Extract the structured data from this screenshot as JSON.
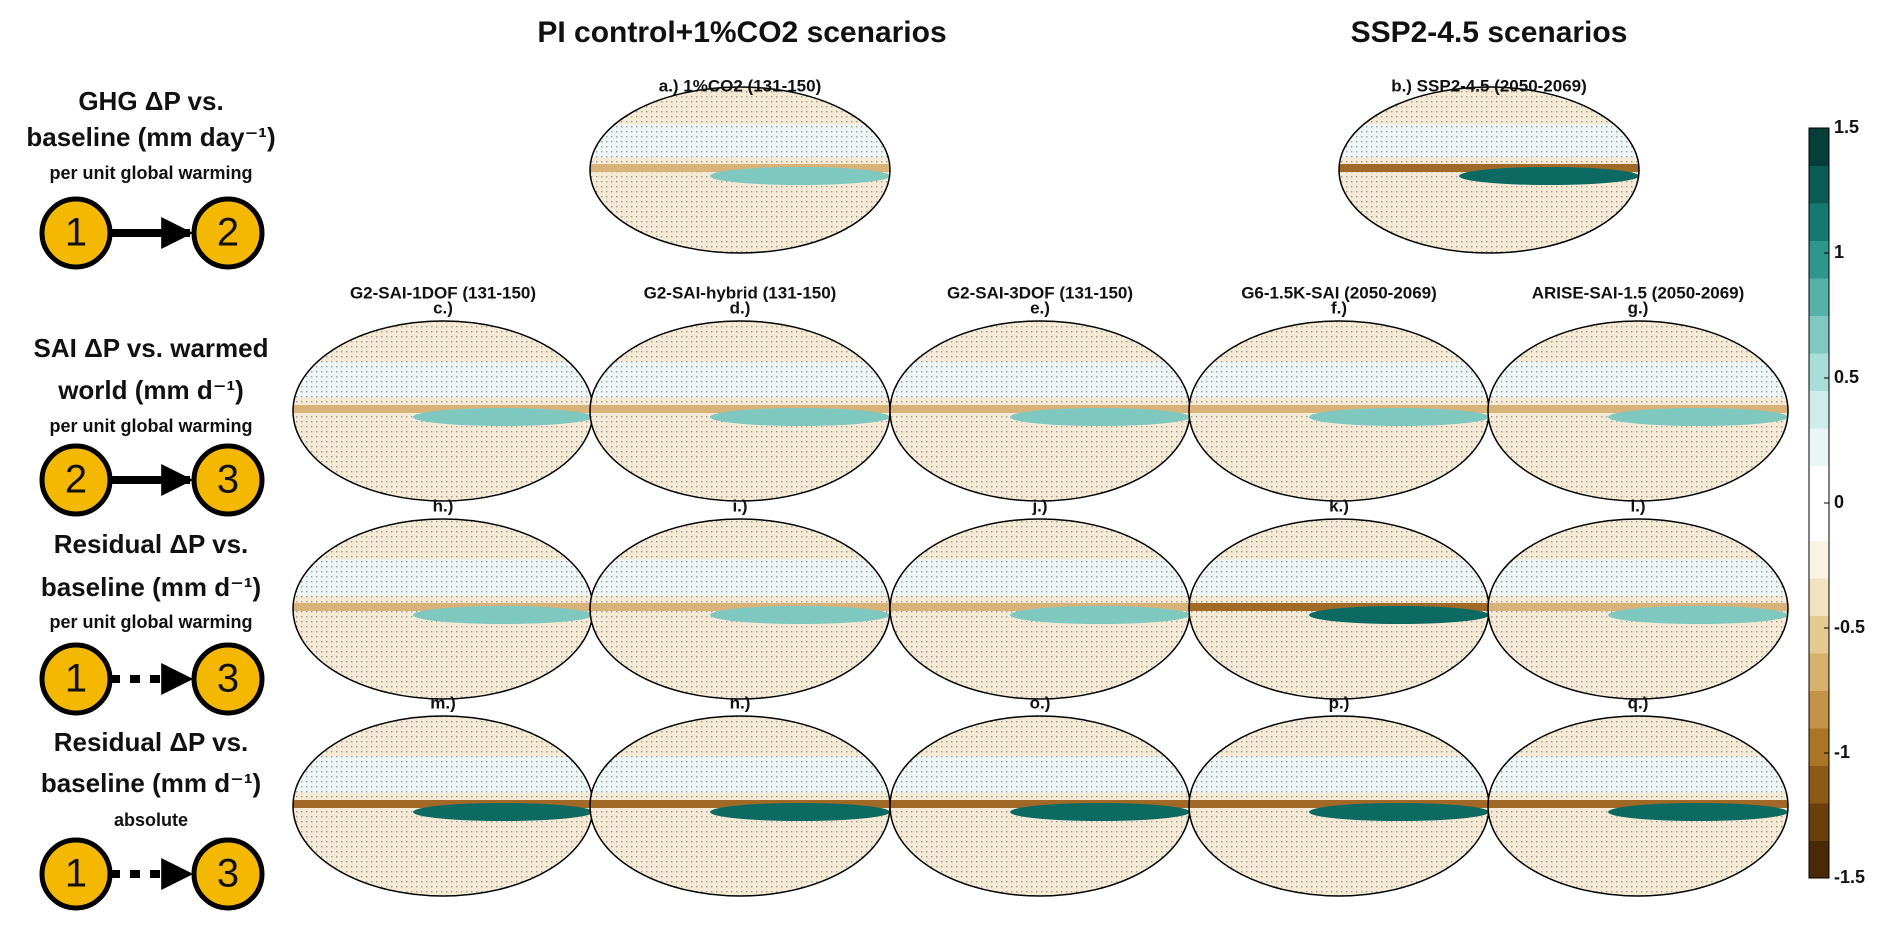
{
  "headers": [
    "PI control+1%CO2 scenarios",
    "SSP2-4.5 scenarios"
  ],
  "rows": [
    {
      "lines": [
        "GHG ΔP vs.",
        "baseline (mm day⁻¹)"
      ],
      "note": "per unit global warming",
      "from": "1",
      "to": "2"
    },
    {
      "lines": [
        "SAI ΔP vs. warmed",
        "world (mm d⁻¹)"
      ],
      "note": "per unit global warming",
      "from": "2",
      "to": "3"
    },
    {
      "lines": [
        "Residual ΔP vs.",
        "baseline (mm d⁻¹)"
      ],
      "note": "per unit global warming",
      "from": "1",
      "to": "3"
    },
    {
      "lines": [
        "Residual ΔP vs.",
        "baseline (mm d⁻¹)"
      ],
      "note": "absolute",
      "from": "1",
      "to": "3"
    }
  ],
  "column_headers": [
    "G2-SAI-1DOF (131-150)",
    "G2-SAI-hybrid (131-150)",
    "G2-SAI-3DOF (131-150)",
    "G6-1.5K-SAI (2050-2069)",
    "ARISE-SAI-1.5 (2050-2069)"
  ],
  "panels": [
    "a.) 1%CO2 (131-150)",
    "b.) SSP2-4.5 (2050-2069)",
    "c.)",
    "d.)",
    "e.)",
    "f.)",
    "g.)",
    "h.)",
    "i.)",
    "j.)",
    "k.)",
    "l.)",
    "m.)",
    "n.)",
    "o.)",
    "p.)",
    "q.)"
  ],
  "colorbar": {
    "lim": [
      -1.5,
      1.5
    ],
    "ticks": [
      1.5,
      1,
      0.5,
      0,
      -0.5,
      -1,
      -1.5
    ],
    "colors": [
      "#4a2a06",
      "#6b3f0c",
      "#8c5a17",
      "#a97628",
      "#c39447",
      "#d6b06c",
      "#e6ca94",
      "#f2e2bf",
      "#faf3e4",
      "#ffffff",
      "#ffffff",
      "#eaf5f5",
      "#cdeceb",
      "#a9ddd9",
      "#80c9c2",
      "#55b2a8",
      "#2f968c",
      "#177870",
      "#0c5c55",
      "#063f3a"
    ]
  }
}
